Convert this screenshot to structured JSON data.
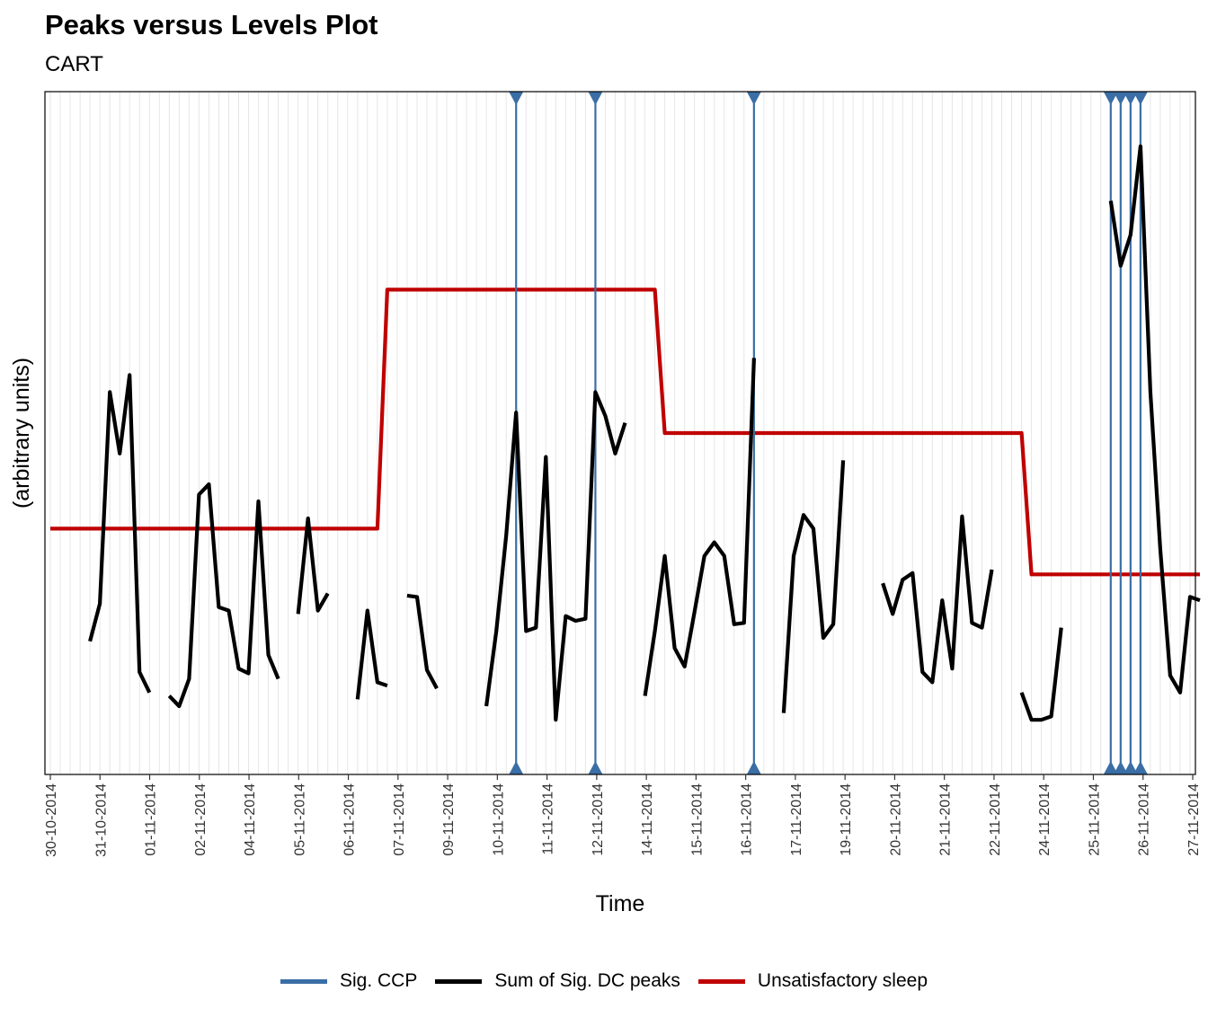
{
  "chart_data": {
    "type": "line",
    "title": "Peaks versus Levels Plot",
    "subtitle": "CART",
    "xlabel": "Time",
    "ylabel": "(arbitrary units)",
    "x_tick_labels": [
      "30-10-2014",
      "31-10-2014",
      "01-11-2014",
      "02-11-2014",
      "04-11-2014",
      "05-11-2014",
      "06-11-2014",
      "07-11-2014",
      "09-11-2014",
      "10-11-2014",
      "11-11-2014",
      "12-11-2014",
      "14-11-2014",
      "15-11-2014",
      "16-11-2014",
      "17-11-2014",
      "19-11-2014",
      "20-11-2014",
      "21-11-2014",
      "22-11-2014",
      "24-11-2014",
      "25-11-2014",
      "26-11-2014",
      "27-11-2014"
    ],
    "x_range": [
      0,
      115
    ],
    "ylim": [
      0,
      1
    ],
    "grid": true,
    "legend_position": "bottom",
    "series": [
      {
        "name": "Sum of Sig. DC peaks",
        "color": "#000000",
        "segments": [
          [
            [
              4,
              0.195
            ],
            [
              5,
              0.25
            ],
            [
              6,
              0.56
            ],
            [
              7,
              0.47
            ],
            [
              8,
              0.585
            ],
            [
              9,
              0.15
            ],
            [
              10,
              0.12
            ]
          ],
          [
            [
              12,
              0.115
            ],
            [
              13,
              0.1
            ],
            [
              14,
              0.14
            ],
            [
              15,
              0.41
            ],
            [
              16,
              0.425
            ],
            [
              17,
              0.245
            ],
            [
              18,
              0.24
            ],
            [
              19,
              0.155
            ],
            [
              20,
              0.148
            ],
            [
              21,
              0.4
            ],
            [
              22,
              0.175
            ],
            [
              23,
              0.14
            ]
          ],
          [
            [
              25,
              0.235
            ],
            [
              26,
              0.375
            ],
            [
              27,
              0.24
            ],
            [
              28,
              0.265
            ]
          ],
          [
            [
              31,
              0.11
            ],
            [
              32,
              0.24
            ],
            [
              33,
              0.135
            ],
            [
              34,
              0.13
            ]
          ],
          [
            [
              36,
              0.262
            ],
            [
              37,
              0.26
            ],
            [
              38,
              0.153
            ],
            [
              39,
              0.126
            ]
          ],
          [
            [
              44,
              0.1
            ],
            [
              45,
              0.21
            ],
            [
              46,
              0.35
            ],
            [
              47,
              0.53
            ],
            [
              48,
              0.21
            ],
            [
              49,
              0.215
            ],
            [
              50,
              0.465
            ],
            [
              51,
              0.08
            ],
            [
              52,
              0.232
            ],
            [
              53,
              0.225
            ],
            [
              54,
              0.228
            ],
            [
              55,
              0.56
            ],
            [
              56,
              0.525
            ],
            [
              57,
              0.47
            ],
            [
              58,
              0.515
            ]
          ],
          [
            [
              60,
              0.115
            ],
            [
              61,
              0.21
            ],
            [
              62,
              0.32
            ],
            [
              63,
              0.185
            ],
            [
              64,
              0.158
            ],
            [
              65,
              0.238
            ],
            [
              66,
              0.32
            ],
            [
              67,
              0.34
            ],
            [
              68,
              0.32
            ],
            [
              69,
              0.22
            ],
            [
              70,
              0.222
            ],
            [
              71,
              0.61
            ]
          ],
          [
            [
              74,
              0.09
            ],
            [
              75,
              0.32
            ],
            [
              76,
              0.38
            ],
            [
              77,
              0.36
            ],
            [
              78,
              0.2
            ],
            [
              79,
              0.22
            ],
            [
              80,
              0.46
            ]
          ],
          [
            [
              84,
              0.28
            ],
            [
              85,
              0.235
            ],
            [
              86,
              0.285
            ],
            [
              87,
              0.295
            ],
            [
              88,
              0.15
            ],
            [
              89,
              0.135
            ],
            [
              90,
              0.255
            ],
            [
              91,
              0.155
            ],
            [
              92,
              0.378
            ],
            [
              93,
              0.222
            ],
            [
              94,
              0.215
            ],
            [
              95,
              0.3
            ]
          ],
          [
            [
              98,
              0.12
            ],
            [
              99,
              0.08
            ],
            [
              100,
              0.08
            ],
            [
              101,
              0.085
            ],
            [
              102,
              0.215
            ]
          ],
          [
            [
              107,
              0.84
            ],
            [
              108,
              0.745
            ],
            [
              109,
              0.79
            ],
            [
              110,
              0.92
            ],
            [
              111,
              0.56
            ],
            [
              112,
              0.33
            ],
            [
              113,
              0.145
            ],
            [
              114,
              0.12
            ],
            [
              115,
              0.26
            ],
            [
              116,
              0.255
            ]
          ]
        ]
      },
      {
        "name": "Unsatisfactory sleep",
        "color": "#c00000",
        "points": [
          [
            0,
            0.36
          ],
          [
            33,
            0.36
          ],
          [
            34,
            0.71
          ],
          [
            61,
            0.71
          ],
          [
            62,
            0.5
          ],
          [
            98,
            0.5
          ],
          [
            99,
            0.293
          ],
          [
            116,
            0.293
          ]
        ]
      },
      {
        "name": "Sig. CCP",
        "color": "#3a6ea5",
        "x": [
          47,
          55,
          71,
          107,
          108,
          109,
          110
        ]
      }
    ]
  }
}
